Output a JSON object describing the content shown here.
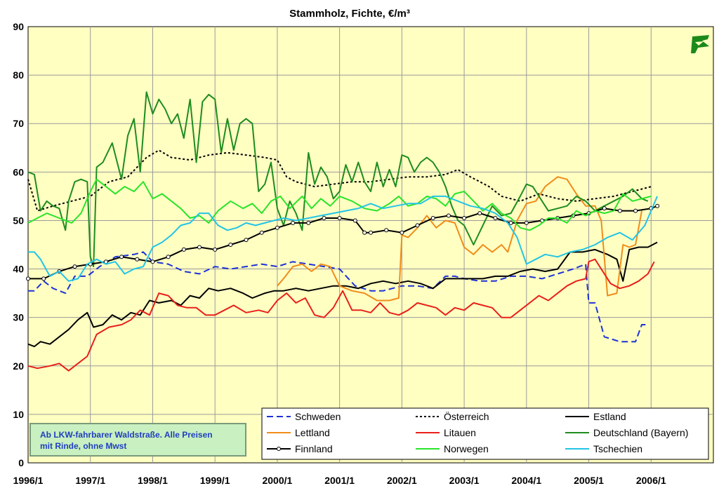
{
  "chart_data": {
    "type": "line",
    "title": "Stammholz, Fichte, €/m³",
    "ylim": [
      0,
      90
    ],
    "yticks": [
      0,
      10,
      20,
      30,
      40,
      50,
      60,
      70,
      80,
      90
    ],
    "xlim": [
      1996.0,
      2007.0
    ],
    "xticks": [
      "1996/1",
      "1997/1",
      "1998/1",
      "1999/1",
      "2000/1",
      "2001/1",
      "2002/1",
      "2003/1",
      "2004/1",
      "2005/1",
      "2006/1"
    ],
    "grid": true,
    "legend_position": "bottom-right",
    "note": "Ab LKW-fahrbarer Waldstraße. Alle Preisen mit Rinde, ohne Mwst",
    "series": [
      {
        "name": "Schweden",
        "color": "#1e32d8",
        "style": "dashed",
        "x": [
          1996.0,
          1996.1,
          1996.25,
          1996.4,
          1996.6,
          1996.75,
          1996.95,
          1997.15,
          1997.4,
          1997.7,
          1997.85,
          1998.0,
          1998.25,
          1998.5,
          1998.75,
          1999.0,
          1999.25,
          1999.5,
          1999.75,
          2000.0,
          2000.25,
          2000.5,
          2000.75,
          2001.0,
          2001.25,
          2001.5,
          2001.7,
          2001.85,
          2002.0,
          2002.25,
          2002.5,
          2002.7,
          2002.85,
          2003.0,
          2003.25,
          2003.5,
          2003.75,
          2004.0,
          2004.25,
          2004.5,
          2004.75,
          2004.95,
          2005.0,
          2005.1,
          2005.25,
          2005.5,
          2005.75,
          2005.85,
          2005.95
        ],
        "y": [
          35.5,
          35.5,
          37.5,
          36.0,
          35.0,
          38.5,
          38.5,
          40.5,
          42.5,
          43.0,
          43.5,
          41.5,
          41.0,
          39.5,
          39.0,
          40.5,
          40.0,
          40.5,
          41.0,
          40.5,
          41.5,
          41.0,
          40.5,
          40.0,
          36.5,
          35.5,
          35.5,
          36.0,
          36.5,
          36.5,
          36.0,
          38.5,
          38.5,
          38.0,
          37.5,
          37.5,
          38.5,
          38.5,
          38.0,
          39.0,
          40.0,
          41.0,
          33.0,
          33.0,
          26.0,
          25.0,
          25.0,
          28.5,
          28.5
        ]
      },
      {
        "name": "Österreich",
        "color": "#000000",
        "style": "dotted",
        "x": [
          1996.0,
          1996.15,
          1996.4,
          1996.7,
          1997.0,
          1997.3,
          1997.6,
          1997.9,
          1998.1,
          1998.3,
          1998.6,
          1998.9,
          1999.2,
          1999.5,
          1999.8,
          2000.0,
          2000.15,
          2000.3,
          2000.6,
          2000.9,
          2001.2,
          2001.5,
          2001.8,
          2002.1,
          2002.4,
          2002.7,
          2002.9,
          2003.1,
          2003.4,
          2003.6,
          2003.9,
          2004.2,
          2004.5,
          2004.8,
          2005.1,
          2005.4,
          2005.7,
          2006.0
        ],
        "y": [
          58.5,
          52.0,
          53.0,
          54.0,
          55.0,
          58.0,
          59.0,
          63.0,
          64.5,
          63.0,
          62.5,
          63.5,
          64.0,
          63.5,
          63.0,
          62.5,
          59.0,
          58.0,
          57.0,
          57.5,
          58.0,
          58.0,
          58.5,
          59.0,
          59.0,
          59.5,
          60.5,
          59.0,
          57.0,
          55.0,
          54.0,
          55.5,
          54.5,
          54.0,
          54.5,
          55.0,
          56.0,
          57.0
        ]
      },
      {
        "name": "Estland",
        "color": "#000000",
        "style": "solid",
        "x": [
          1996.0,
          1996.1,
          1996.2,
          1996.35,
          1996.5,
          1996.65,
          1996.8,
          1996.95,
          1997.05,
          1997.2,
          1997.35,
          1997.5,
          1997.65,
          1997.8,
          1997.95,
          1998.1,
          1998.3,
          1998.45,
          1998.6,
          1998.75,
          1998.9,
          1999.05,
          1999.25,
          1999.45,
          1999.6,
          1999.8,
          1999.95,
          2000.1,
          2000.3,
          2000.5,
          2000.7,
          2000.9,
          2001.1,
          2001.3,
          2001.5,
          2001.7,
          2001.9,
          2002.1,
          2002.3,
          2002.5,
          2002.7,
          2002.9,
          2003.1,
          2003.3,
          2003.5,
          2003.7,
          2003.9,
          2004.1,
          2004.3,
          2004.5,
          2004.7,
          2004.9,
          2005.1,
          2005.3,
          2005.45,
          2005.55,
          2005.65,
          2005.8,
          2005.95,
          2006.1
        ],
        "y": [
          24.5,
          24.0,
          25.0,
          24.5,
          26.0,
          27.5,
          29.5,
          31.0,
          28.0,
          28.5,
          30.5,
          29.5,
          31.0,
          30.5,
          33.5,
          33.0,
          33.5,
          32.5,
          34.5,
          34.0,
          36.0,
          35.5,
          36.0,
          35.0,
          34.0,
          35.0,
          35.5,
          35.5,
          36.0,
          35.5,
          36.0,
          36.5,
          36.5,
          36.0,
          37.0,
          37.5,
          37.0,
          37.5,
          37.0,
          36.0,
          38.0,
          38.0,
          38.0,
          38.0,
          38.5,
          38.5,
          39.5,
          40.0,
          39.5,
          40.0,
          43.5,
          43.5,
          44.0,
          43.0,
          42.0,
          37.5,
          44.0,
          44.5,
          44.5,
          45.5
        ]
      },
      {
        "name": "Lettland",
        "color": "#f08c1a",
        "style": "solid",
        "x": [
          2000.0,
          2000.1,
          2000.25,
          2000.4,
          2000.55,
          2000.7,
          2000.85,
          2001.0,
          2001.2,
          2001.4,
          2001.6,
          2001.8,
          2001.95,
          2002.0,
          2002.1,
          2002.25,
          2002.4,
          2002.55,
          2002.7,
          2002.85,
          2003.0,
          2003.15,
          2003.3,
          2003.45,
          2003.6,
          2003.7,
          2003.85,
          2004.0,
          2004.15,
          2004.3,
          2004.5,
          2004.65,
          2004.8,
          2004.95,
          2005.1,
          2005.2,
          2005.3,
          2005.45,
          2005.55,
          2005.65,
          2005.75,
          2005.85
        ],
        "y": [
          36.5,
          38.0,
          40.5,
          41.0,
          39.5,
          41.0,
          40.5,
          36.5,
          35.5,
          35.0,
          33.5,
          33.5,
          34.0,
          47.0,
          46.5,
          48.5,
          51.0,
          48.5,
          50.0,
          49.5,
          44.5,
          43.0,
          45.0,
          43.5,
          45.0,
          43.5,
          50.0,
          53.5,
          54.0,
          57.0,
          59.0,
          58.5,
          55.5,
          53.0,
          53.0,
          50.0,
          34.5,
          35.0,
          45.0,
          44.5,
          45.0,
          52.0
        ]
      },
      {
        "name": "Litauen",
        "color": "#e8201a",
        "style": "solid",
        "x": [
          1996.0,
          1996.15,
          1996.35,
          1996.5,
          1996.65,
          1996.8,
          1996.95,
          1997.1,
          1997.3,
          1997.5,
          1997.65,
          1997.8,
          1997.95,
          1998.1,
          1998.25,
          1998.4,
          1998.55,
          1998.7,
          1998.85,
          1999.0,
          1999.15,
          1999.3,
          1999.5,
          1999.7,
          1999.85,
          2000.0,
          2000.15,
          2000.3,
          2000.45,
          2000.6,
          2000.75,
          2000.9,
          2001.05,
          2001.2,
          2001.35,
          2001.5,
          2001.65,
          2001.8,
          2001.95,
          2002.1,
          2002.25,
          2002.4,
          2002.55,
          2002.7,
          2002.85,
          2003.0,
          2003.15,
          2003.3,
          2003.45,
          2003.6,
          2003.75,
          2003.9,
          2004.05,
          2004.2,
          2004.35,
          2004.5,
          2004.65,
          2004.8,
          2004.95,
          2005.0,
          2005.1,
          2005.2,
          2005.35,
          2005.5,
          2005.65,
          2005.8,
          2005.95,
          2006.05
        ],
        "y": [
          20.0,
          19.5,
          20.0,
          20.5,
          19.0,
          20.5,
          22.0,
          26.5,
          28.0,
          28.5,
          29.5,
          31.5,
          30.5,
          35.0,
          34.5,
          32.5,
          32.0,
          32.0,
          30.5,
          30.5,
          31.5,
          32.5,
          31.0,
          31.5,
          31.0,
          33.5,
          35.0,
          33.0,
          34.0,
          30.5,
          30.0,
          32.0,
          35.5,
          31.5,
          31.5,
          31.0,
          33.0,
          31.0,
          30.5,
          31.5,
          33.0,
          32.5,
          32.0,
          30.5,
          32.0,
          31.5,
          33.0,
          32.5,
          32.0,
          30.0,
          30.0,
          31.5,
          33.0,
          34.5,
          33.5,
          35.0,
          36.5,
          37.5,
          38.0,
          41.5,
          42.0,
          40.0,
          37.0,
          36.0,
          36.5,
          37.5,
          39.0,
          41.5
        ]
      },
      {
        "name": "Deutschland (Bayern)",
        "color": "#1e8c1e",
        "style": "solid",
        "x": [
          1996.0,
          1996.1,
          1996.2,
          1996.3,
          1996.4,
          1996.5,
          1996.6,
          1996.65,
          1996.75,
          1996.85,
          1996.95,
          1997.0,
          1997.05,
          1997.1,
          1997.2,
          1997.35,
          1997.5,
          1997.6,
          1997.7,
          1997.8,
          1997.9,
          1998.0,
          1998.1,
          1998.2,
          1998.3,
          1998.4,
          1998.5,
          1998.6,
          1998.7,
          1998.8,
          1998.9,
          1999.0,
          1999.1,
          1999.2,
          1999.3,
          1999.4,
          1999.5,
          1999.6,
          1999.7,
          1999.8,
          1999.9,
          2000.0,
          2000.1,
          2000.2,
          2000.3,
          2000.4,
          2000.5,
          2000.6,
          2000.7,
          2000.8,
          2000.9,
          2001.0,
          2001.1,
          2001.2,
          2001.3,
          2001.4,
          2001.5,
          2001.6,
          2001.7,
          2001.8,
          2001.9,
          2002.0,
          2002.1,
          2002.2,
          2002.3,
          2002.4,
          2002.5,
          2002.6,
          2002.7,
          2002.8,
          2002.9,
          2003.0,
          2003.15,
          2003.3,
          2003.45,
          2003.6,
          2003.75,
          2003.9,
          2004.0,
          2004.1,
          2004.2,
          2004.35,
          2004.5,
          2004.65,
          2004.8,
          2004.95,
          2005.1,
          2005.25,
          2005.4,
          2005.55,
          2005.7,
          2005.85,
          2005.95
        ],
        "y": [
          60.0,
          59.5,
          52.0,
          54.0,
          53.0,
          52.5,
          48.0,
          54.0,
          58.0,
          58.5,
          58.0,
          42.5,
          40.5,
          61.0,
          62.0,
          66.0,
          58.5,
          67.5,
          71.0,
          60.0,
          76.5,
          72.0,
          75.0,
          73.0,
          70.0,
          72.0,
          67.0,
          75.0,
          62.0,
          74.5,
          76.0,
          75.0,
          64.0,
          71.0,
          64.5,
          70.0,
          71.0,
          70.0,
          56.0,
          57.5,
          62.0,
          52.5,
          49.0,
          54.0,
          51.5,
          48.0,
          64.0,
          57.5,
          61.0,
          59.0,
          54.5,
          56.0,
          61.5,
          58.0,
          62.0,
          58.0,
          56.0,
          62.0,
          57.0,
          60.5,
          57.0,
          63.5,
          63.0,
          60.0,
          62.0,
          63.0,
          62.0,
          60.0,
          57.0,
          53.0,
          50.0,
          49.0,
          45.0,
          49.0,
          53.0,
          51.0,
          51.5,
          55.0,
          57.5,
          57.0,
          55.0,
          52.0,
          52.5,
          53.0,
          55.0,
          54.0,
          52.0,
          53.0,
          54.0,
          55.0,
          56.5,
          54.5,
          54.0
        ]
      },
      {
        "name": "Finnland",
        "color": "#000000",
        "style": "solid-markers",
        "x": [
          1996.0,
          1996.25,
          1996.5,
          1996.75,
          1997.0,
          1997.25,
          1997.5,
          1997.75,
          1998.0,
          1998.25,
          1998.5,
          1998.75,
          1999.0,
          1999.25,
          1999.5,
          1999.75,
          2000.0,
          2000.25,
          2000.5,
          2000.75,
          2001.0,
          2001.25,
          2001.4,
          2001.5,
          2001.75,
          2002.0,
          2002.25,
          2002.5,
          2002.75,
          2003.0,
          2003.25,
          2003.5,
          2003.75,
          2004.0,
          2004.25,
          2004.5,
          2004.75,
          2005.0,
          2005.25,
          2005.5,
          2005.75,
          2006.0,
          2006.1
        ],
        "y": [
          38.0,
          38.0,
          39.5,
          40.5,
          41.0,
          41.5,
          42.5,
          42.0,
          41.5,
          42.5,
          44.0,
          44.5,
          44.0,
          45.0,
          46.0,
          47.5,
          48.5,
          49.5,
          49.5,
          50.5,
          50.5,
          50.0,
          47.5,
          47.5,
          48.0,
          47.5,
          49.0,
          50.5,
          51.0,
          50.5,
          51.5,
          50.5,
          49.5,
          49.5,
          50.0,
          50.5,
          51.0,
          51.5,
          52.5,
          52.0,
          52.0,
          52.5,
          53.0
        ]
      },
      {
        "name": "Norwegen",
        "color": "#2ae42a",
        "style": "solid",
        "x": [
          1996.0,
          1996.15,
          1996.3,
          1996.5,
          1996.7,
          1996.85,
          1997.0,
          1997.1,
          1997.25,
          1997.4,
          1997.55,
          1997.7,
          1997.85,
          1998.0,
          1998.15,
          1998.3,
          1998.45,
          1998.6,
          1998.75,
          1998.9,
          1999.05,
          1999.25,
          1999.45,
          1999.6,
          1999.75,
          1999.9,
          2000.05,
          2000.2,
          2000.4,
          2000.55,
          2000.7,
          2000.85,
          2001.0,
          2001.2,
          2001.4,
          2001.6,
          2001.8,
          2001.95,
          2002.1,
          2002.25,
          2002.4,
          2002.55,
          2002.7,
          2002.85,
          2003.0,
          2003.15,
          2003.3,
          2003.45,
          2003.6,
          2003.75,
          2003.9,
          2004.05,
          2004.2,
          2004.35,
          2004.5,
          2004.65,
          2004.8,
          2004.95,
          2005.1,
          2005.25,
          2005.4,
          2005.55,
          2005.7,
          2005.85,
          2006.0
        ],
        "y": [
          49.5,
          50.5,
          51.5,
          50.5,
          49.5,
          51.5,
          56.0,
          58.5,
          57.0,
          55.5,
          57.0,
          56.0,
          58.0,
          54.5,
          55.5,
          54.0,
          52.5,
          50.5,
          51.0,
          49.5,
          52.0,
          54.0,
          52.5,
          53.5,
          51.5,
          54.0,
          55.0,
          52.5,
          55.0,
          52.5,
          54.5,
          53.0,
          55.0,
          54.0,
          52.5,
          52.0,
          53.5,
          55.0,
          53.0,
          53.5,
          55.0,
          54.5,
          53.0,
          55.5,
          56.0,
          54.0,
          52.0,
          53.5,
          51.5,
          50.5,
          48.5,
          48.0,
          49.0,
          50.5,
          50.5,
          49.5,
          52.0,
          51.0,
          52.0,
          51.5,
          52.0,
          55.5,
          54.0,
          54.5,
          55.0
        ]
      },
      {
        "name": "Tschechien",
        "color": "#22c4e6",
        "style": "solid",
        "x": [
          1996.0,
          1996.1,
          1996.2,
          1996.35,
          1996.5,
          1996.65,
          1996.8,
          1996.95,
          1997.1,
          1997.25,
          1997.4,
          1997.55,
          1997.7,
          1997.85,
          1998.0,
          1998.15,
          1998.3,
          1998.45,
          1998.6,
          1998.75,
          1998.9,
          1999.05,
          1999.2,
          1999.35,
          1999.5,
          1999.65,
          1999.8,
          1999.95,
          2000.1,
          2000.3,
          2000.5,
          2000.7,
          2000.9,
          2001.1,
          2001.3,
          2001.5,
          2001.7,
          2001.9,
          2002.1,
          2002.3,
          2002.5,
          2002.7,
          2002.9,
          2003.1,
          2003.3,
          2003.5,
          2003.7,
          2003.85,
          2004.0,
          2004.15,
          2004.3,
          2004.5,
          2004.7,
          2004.9,
          2005.1,
          2005.3,
          2005.5,
          2005.7,
          2005.9,
          2006.1
        ],
        "y": [
          43.5,
          43.5,
          42.0,
          38.5,
          39.5,
          37.5,
          38.0,
          41.0,
          42.0,
          41.0,
          41.5,
          39.0,
          40.0,
          40.5,
          44.5,
          45.5,
          47.0,
          49.0,
          49.5,
          51.5,
          51.5,
          49.0,
          48.0,
          48.5,
          49.5,
          49.0,
          49.5,
          50.0,
          50.5,
          50.0,
          50.5,
          51.0,
          51.5,
          52.0,
          52.5,
          53.5,
          52.5,
          53.0,
          53.5,
          53.5,
          55.0,
          55.0,
          54.0,
          53.0,
          52.5,
          51.5,
          49.5,
          46.5,
          41.0,
          42.0,
          43.0,
          42.5,
          43.5,
          44.0,
          45.0,
          46.5,
          47.5,
          46.0,
          49.0,
          55.0
        ]
      }
    ]
  }
}
